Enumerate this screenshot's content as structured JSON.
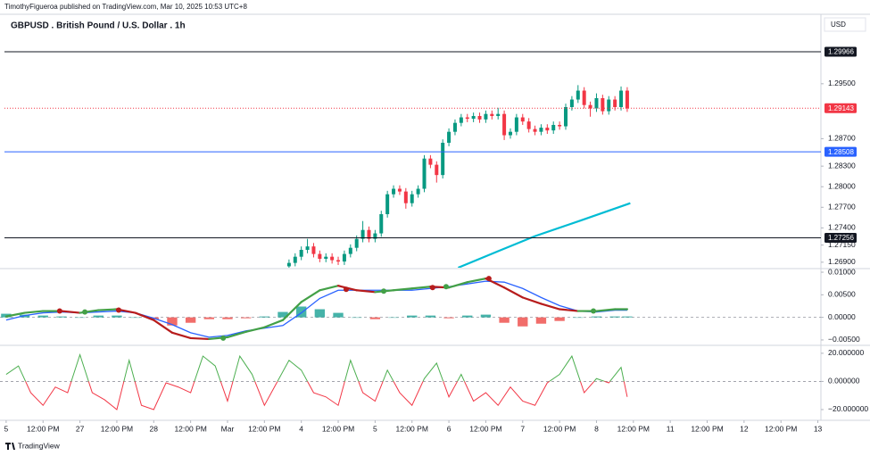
{
  "header": {
    "author_line": "TimothyFigueroa published on TradingView.com, Mar 10, 2025 10:53 UTC+8",
    "currency": "USD"
  },
  "footer": {
    "brand": "TradingView"
  },
  "chart_data": [
    {
      "type": "candlestick",
      "title": "GBPUSD . British Pound / U.S. Dollar . 1h",
      "ylim": [
        1.2682,
        1.3046
      ],
      "yticks": [
        {
          "value": 1.295,
          "label": "1.29500"
        },
        {
          "value": 1.287,
          "label": "1.28700"
        },
        {
          "value": 1.283,
          "label": "1.28300"
        },
        {
          "value": 1.28,
          "label": "1.28000"
        },
        {
          "value": 1.277,
          "label": "1.27700"
        },
        {
          "value": 1.274,
          "label": "1.27400"
        },
        {
          "value": 1.2715,
          "label": "1.27150"
        },
        {
          "value": 1.269,
          "label": "1.26900"
        }
      ],
      "up_color": "#089981",
      "down_color": "#f23645",
      "x": [
        92,
        94,
        96,
        98,
        100,
        102,
        104,
        106,
        108,
        110,
        112,
        114,
        116,
        118,
        120,
        122,
        124,
        126,
        128,
        130,
        132,
        134,
        136,
        138,
        140,
        142,
        144,
        146,
        148,
        150,
        152,
        154,
        156,
        158,
        160,
        162,
        164,
        166,
        168,
        170,
        172,
        174,
        176,
        178,
        180,
        182,
        184,
        186,
        188,
        190,
        192,
        194,
        196,
        198,
        200,
        202
      ],
      "open": [
        1.2684,
        1.2689,
        1.2698,
        1.2708,
        1.2713,
        1.2702,
        1.2695,
        1.2698,
        1.2693,
        1.2691,
        1.2702,
        1.2711,
        1.2724,
        1.2737,
        1.2724,
        1.2732,
        1.276,
        1.2789,
        1.2797,
        1.2793,
        1.2776,
        1.2789,
        1.2797,
        1.2841,
        1.2832,
        1.2817,
        1.2864,
        1.288,
        1.2893,
        1.2901,
        1.2899,
        1.2903,
        1.2898,
        1.2906,
        1.2903,
        1.2906,
        1.2875,
        1.288,
        1.2901,
        1.2895,
        1.2884,
        1.288,
        1.2886,
        1.2882,
        1.289,
        1.2888,
        1.2916,
        1.2927,
        1.294,
        1.2919,
        1.2914,
        1.2929,
        1.291,
        1.2927,
        1.2916,
        1.294
      ],
      "high": [
        1.2694,
        1.2703,
        1.2713,
        1.2724,
        1.2718,
        1.2707,
        1.2703,
        1.2703,
        1.2698,
        1.2707,
        1.2716,
        1.2729,
        1.275,
        1.2742,
        1.2737,
        1.2765,
        1.2794,
        1.2802,
        1.2802,
        1.2798,
        1.2794,
        1.2802,
        1.2846,
        1.2846,
        1.2837,
        1.2869,
        1.2885,
        1.2898,
        1.2906,
        1.2906,
        1.2908,
        1.2908,
        1.2911,
        1.2911,
        1.2915,
        1.2911,
        1.2885,
        1.2906,
        1.2906,
        1.29,
        1.2889,
        1.2891,
        1.2891,
        1.2895,
        1.2895,
        1.2921,
        1.2932,
        1.2948,
        1.2945,
        1.2924,
        1.2936,
        1.2934,
        1.2932,
        1.2932,
        1.2946,
        1.2945
      ],
      "low": [
        1.2679,
        1.2684,
        1.2693,
        1.2703,
        1.2697,
        1.269,
        1.269,
        1.2688,
        1.2686,
        1.2686,
        1.2697,
        1.2706,
        1.2719,
        1.2719,
        1.2719,
        1.2727,
        1.2755,
        1.2784,
        1.2788,
        1.2768,
        1.2771,
        1.2784,
        1.2792,
        1.2827,
        1.2806,
        1.2812,
        1.2859,
        1.2875,
        1.2888,
        1.2894,
        1.2894,
        1.2893,
        1.2893,
        1.2898,
        1.2898,
        1.2868,
        1.287,
        1.2875,
        1.289,
        1.2879,
        1.2875,
        1.2875,
        1.2877,
        1.2877,
        1.2883,
        1.2883,
        1.2911,
        1.2922,
        1.2914,
        1.2902,
        1.2909,
        1.2905,
        1.2905,
        1.2911,
        1.2911,
        1.2909
      ],
      "close": [
        1.2689,
        1.2698,
        1.2708,
        1.2713,
        1.2702,
        1.2695,
        1.2698,
        1.2693,
        1.2691,
        1.2702,
        1.2711,
        1.2724,
        1.2737,
        1.2724,
        1.2732,
        1.276,
        1.2789,
        1.2797,
        1.2793,
        1.2776,
        1.2789,
        1.2797,
        1.2841,
        1.2832,
        1.2817,
        1.2864,
        1.288,
        1.2893,
        1.2901,
        1.2899,
        1.2903,
        1.2898,
        1.2906,
        1.2903,
        1.2906,
        1.2875,
        1.288,
        1.2901,
        1.2895,
        1.2884,
        1.288,
        1.2886,
        1.2882,
        1.289,
        1.2888,
        1.2916,
        1.2927,
        1.294,
        1.2919,
        1.2914,
        1.2929,
        1.291,
        1.2927,
        1.2916,
        1.294,
        1.2914
      ],
      "moving_average": {
        "color": "#00bcd4",
        "x": [
          147,
          160,
          172,
          187,
          203
        ],
        "values": [
          1.2682,
          1.2706,
          1.2728,
          1.2751,
          1.2776
        ]
      },
      "hlines": [
        {
          "value": 1.29966,
          "color": "#131722",
          "style": "solid"
        },
        {
          "value": 1.29143,
          "color": "#f23645",
          "style": "dotted"
        },
        {
          "value": 1.28508,
          "color": "#2962ff",
          "style": "solid"
        },
        {
          "value": 1.27256,
          "color": "#131722",
          "style": "solid"
        }
      ]
    },
    {
      "type": "macd",
      "ylim": [
        -0.006,
        0.0106
      ],
      "yticks": [
        {
          "value": 0.01,
          "label": "0.01000"
        },
        {
          "value": 0.005,
          "label": "0.00500"
        },
        {
          "value": 0,
          "label": "0.00000"
        },
        {
          "value": -0.005,
          "label": "−0.00500"
        }
      ],
      "zero_line": true,
      "x": [
        0,
        6,
        12,
        18,
        24,
        30,
        36,
        42,
        48,
        54,
        60,
        66,
        72,
        78,
        84,
        90,
        96,
        102,
        108,
        114,
        120,
        126,
        132,
        138,
        144,
        150,
        156,
        162,
        168,
        174,
        180,
        186,
        192,
        198,
        202
      ],
      "fast": {
        "up_color": "#43a047",
        "down_color": "#b71c1c",
        "values": [
          0.0002,
          0.001,
          0.0014,
          0.0014,
          0.001,
          0.0016,
          0.0018,
          0.001,
          -0.0006,
          -0.0034,
          -0.0046,
          -0.0048,
          -0.0044,
          -0.0032,
          -0.0022,
          -0.0006,
          0.0034,
          0.006,
          0.007,
          0.006,
          0.0056,
          0.006,
          0.0064,
          0.0068,
          0.0066,
          0.0078,
          0.0086,
          0.0066,
          0.0044,
          0.003,
          0.0018,
          0.0014,
          0.0014,
          0.0018,
          0.0018
        ]
      },
      "slow": {
        "color": "#2962ff",
        "values": [
          -0.0006,
          0.0004,
          0.001,
          0.0012,
          0.001,
          0.0012,
          0.0014,
          0.001,
          -0.0002,
          -0.0016,
          -0.0034,
          -0.0044,
          -0.004,
          -0.003,
          -0.0024,
          -0.0018,
          0.001,
          0.0042,
          0.006,
          0.006,
          0.006,
          0.006,
          0.006,
          0.0064,
          0.0068,
          0.0074,
          0.008,
          0.0078,
          0.0064,
          0.0044,
          0.0026,
          0.0014,
          0.0012,
          0.0016,
          0.0016
        ]
      },
      "histogram": {
        "pos_color": "#26a69a",
        "neg_color": "#ef5350",
        "values": [
          0.0008,
          0.0006,
          0.0004,
          0.0002,
          0,
          0.0004,
          0.0004,
          0,
          -0.0004,
          -0.0018,
          -0.0012,
          -0.0004,
          -0.0004,
          -0.0002,
          0.0002,
          0.0012,
          0.0024,
          0.0018,
          0.001,
          0,
          -0.0004,
          0,
          0.0004,
          0.0004,
          -0.0002,
          0.0004,
          0.0006,
          -0.0012,
          -0.002,
          -0.0014,
          -0.0008,
          0,
          0.0002,
          0.0002,
          0.0002
        ]
      },
      "signals": {
        "x": [
          17.4,
          25.6,
          36.6,
          70.6,
          110.6,
          122.8,
          138.7,
          143.1,
          157,
          191
        ],
        "values": [
          0.0014,
          0.0012,
          0.0016,
          -0.0046,
          0.0062,
          0.0058,
          0.0066,
          0.0068,
          0.0086,
          0.0014
        ],
        "colors": [
          "#b71c1c",
          "#43a047",
          "#b71c1c",
          "#43a047",
          "#b71c1c",
          "#43a047",
          "#b71c1c",
          "#43a047",
          "#b71c1c",
          "#43a047"
        ]
      }
    },
    {
      "type": "line",
      "ylim": [
        -27,
        25
      ],
      "yticks": [
        {
          "value": 20,
          "label": "20.000000"
        },
        {
          "value": 0,
          "label": "0.000000"
        },
        {
          "value": -20,
          "label": "−20.000000"
        }
      ],
      "zero_line": true,
      "pos_color": "#4caf50",
      "neg_color": "#f23645",
      "x": [
        0,
        4,
        8,
        12,
        16,
        20,
        24,
        28,
        32,
        36,
        40,
        44,
        48,
        52,
        56,
        60,
        64,
        68,
        72,
        76,
        80,
        84,
        88,
        92,
        96,
        100,
        104,
        108,
        112,
        116,
        120,
        124,
        128,
        132,
        136,
        140,
        144,
        148,
        152,
        156,
        160,
        164,
        168,
        172,
        176,
        180,
        184,
        188,
        192,
        196,
        200,
        202
      ],
      "values": [
        5,
        11,
        -8,
        -17,
        -4,
        -8,
        19,
        -8,
        -13,
        -20,
        15,
        -17,
        -20,
        -1,
        -4,
        -8,
        18,
        11,
        -14,
        18,
        5,
        -17,
        -1,
        15,
        8,
        -8,
        -11,
        -17,
        15,
        -8,
        -14,
        8,
        -8,
        -17,
        2,
        13,
        -11,
        5,
        -14,
        -8,
        -17,
        -4,
        -14,
        -17,
        -1,
        5,
        18,
        -8,
        2,
        -1,
        10,
        -11
      ],
      "xlim": [
        -2,
        265
      ],
      "xticks": [
        {
          "value": 0,
          "label": "5"
        },
        {
          "value": 12,
          "label": "12:00 PM"
        },
        {
          "value": 24,
          "label": "27"
        },
        {
          "value": 36,
          "label": "12:00 PM"
        },
        {
          "value": 48,
          "label": "28"
        },
        {
          "value": 60,
          "label": "12:00 PM"
        },
        {
          "value": 72,
          "label": "Mar"
        },
        {
          "value": 84,
          "label": "12:00 PM"
        },
        {
          "value": 96,
          "label": "4"
        },
        {
          "value": 108,
          "label": "12:00 PM"
        },
        {
          "value": 120,
          "label": "5"
        },
        {
          "value": 132,
          "label": "12:00 PM"
        },
        {
          "value": 144,
          "label": "6"
        },
        {
          "value": 156,
          "label": "12:00 PM"
        },
        {
          "value": 168,
          "label": "7"
        },
        {
          "value": 180,
          "label": "12:00 PM"
        },
        {
          "value": 192,
          "label": "8"
        },
        {
          "value": 204,
          "label": "12:00 PM"
        },
        {
          "value": 216,
          "label": "11"
        },
        {
          "value": 228,
          "label": "12:00 PM"
        },
        {
          "value": 240,
          "label": "12"
        },
        {
          "value": 252,
          "label": "12:00 PM"
        },
        {
          "value": 264,
          "label": "13"
        }
      ]
    }
  ]
}
